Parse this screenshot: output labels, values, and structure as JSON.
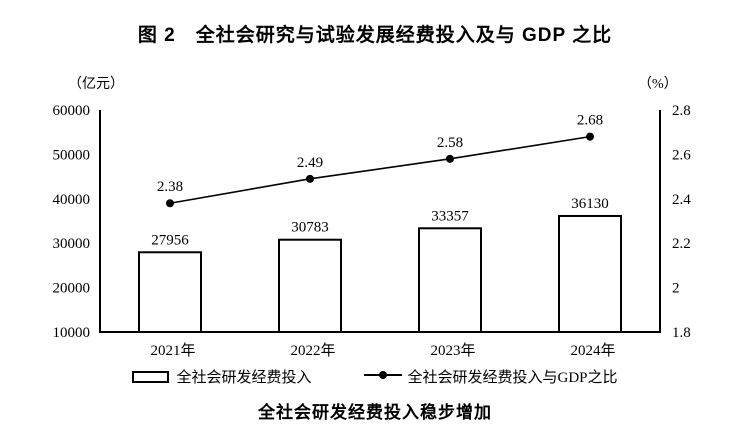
{
  "figure": {
    "title": "图 2　全社会研究与试验发展经费投入及与 GDP 之比",
    "caption": "全社会研发经费投入稳步增加"
  },
  "legend": {
    "bar_label": "全社会研发经费投入",
    "line_label": "全社会研发经费投入与GDP之比"
  },
  "chart_data": {
    "type": "bar",
    "subtype": "bar+line combo, dual axis",
    "categories": [
      "2021年",
      "2022年",
      "2023年",
      "2024年"
    ],
    "series": [
      {
        "name": "全社会研发经费投入",
        "type": "bar",
        "axis": "left",
        "values": [
          27956,
          30783,
          33357,
          36130
        ],
        "value_labels": [
          "27956",
          "30783",
          "33357",
          "36130"
        ],
        "fill": "#ffffff",
        "stroke": "#000000"
      },
      {
        "name": "全社会研发经费投入与GDP之比",
        "type": "line",
        "axis": "right",
        "values": [
          2.38,
          2.49,
          2.58,
          2.68
        ],
        "value_labels": [
          "2.38",
          "2.49",
          "2.58",
          "2.68"
        ],
        "stroke": "#000000",
        "marker": "filled-circle"
      }
    ],
    "left_axis": {
      "unit": "（亿元）",
      "min": 10000,
      "max": 60000,
      "tick_labels": [
        "60000",
        "50000",
        "40000",
        "30000",
        "20000",
        "10000"
      ],
      "tick_values": [
        60000,
        50000,
        40000,
        30000,
        20000,
        10000
      ]
    },
    "right_axis": {
      "unit": "（%）",
      "min": 1.8,
      "max": 2.8,
      "tick_labels": [
        "2.8",
        "2.6",
        "2.4",
        "2.2",
        "2",
        "1.8"
      ],
      "tick_values": [
        2.8,
        2.6,
        2.4,
        2.2,
        2.0,
        1.8
      ]
    },
    "grid": false,
    "legend_position": "bottom",
    "axis_color": "#000000"
  }
}
